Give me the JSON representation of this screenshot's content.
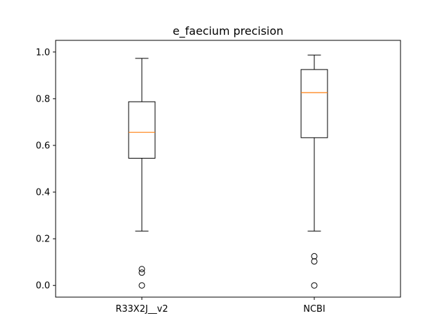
{
  "chart_data": {
    "type": "box",
    "title": "e_faecium precision",
    "xlabel": "",
    "ylabel": "",
    "ylim": [
      -0.05,
      1.05
    ],
    "yticks": [
      0.0,
      0.2,
      0.4,
      0.6,
      0.8,
      1.0
    ],
    "ytick_labels": [
      "0.0",
      "0.2",
      "0.4",
      "0.6",
      "0.8",
      "1.0"
    ],
    "categories": [
      "R33X2J__v2",
      "NCBI"
    ],
    "boxes": [
      {
        "label": "R33X2J__v2",
        "whisker_low": 0.233,
        "q1": 0.545,
        "median": 0.656,
        "q3": 0.787,
        "whisker_high": 0.973,
        "outliers": [
          0.07,
          0.055,
          0.0
        ]
      },
      {
        "label": "NCBI",
        "whisker_low": 0.233,
        "q1": 0.633,
        "median": 0.826,
        "q3": 0.925,
        "whisker_high": 0.987,
        "outliers": [
          0.125,
          0.103,
          0.0
        ]
      }
    ],
    "grid": false,
    "colors": {
      "box": "#000000",
      "median": "#ff7f0e",
      "outlier": "#000000"
    }
  }
}
